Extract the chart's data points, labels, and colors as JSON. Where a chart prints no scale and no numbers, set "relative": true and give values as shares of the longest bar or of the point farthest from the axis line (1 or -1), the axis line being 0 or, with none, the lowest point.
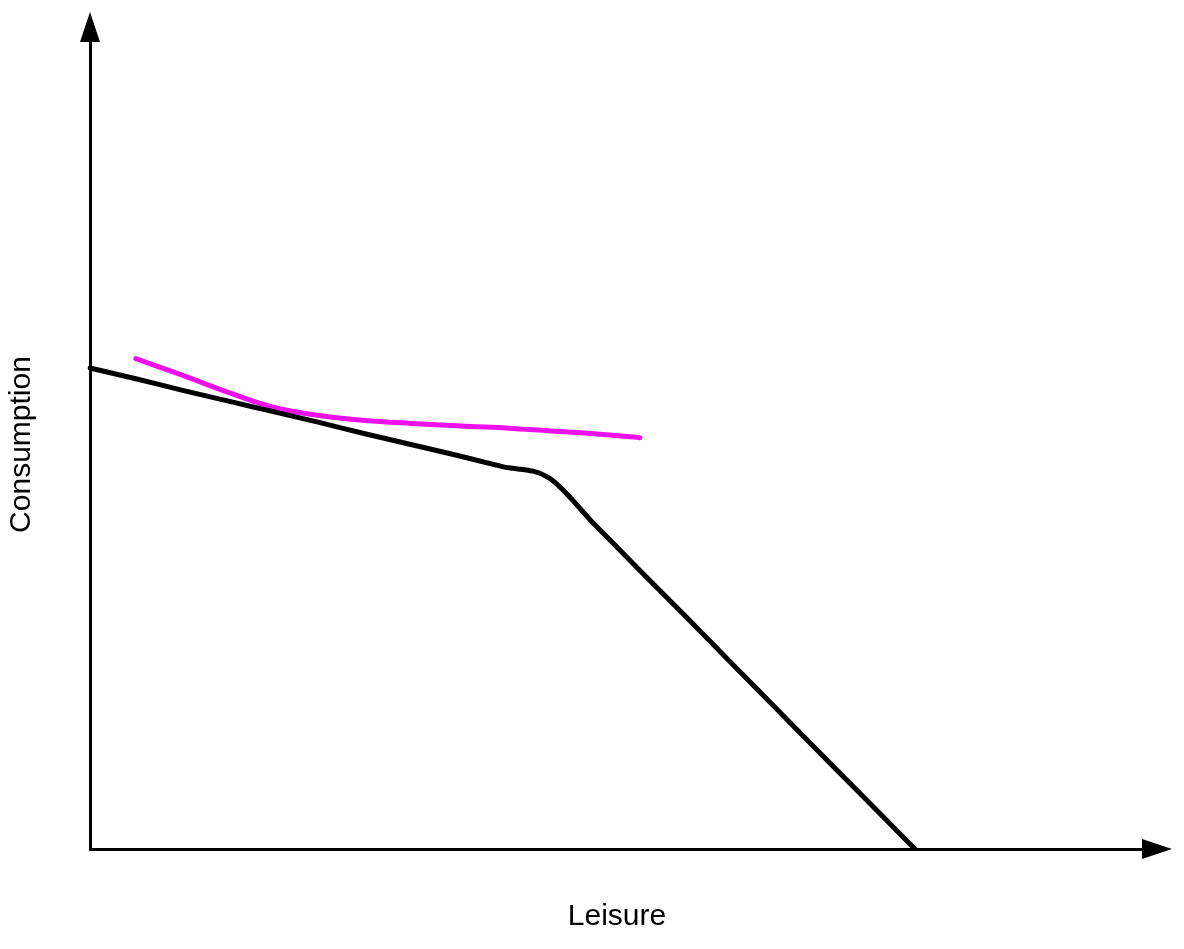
{
  "chart_data": {
    "type": "line",
    "relative": true,
    "xlabel": "Leisure",
    "ylabel": "Consumption",
    "grid": false,
    "legend": false,
    "marker": "none",
    "line_style": "solid",
    "categories": [
      null,
      null,
      null,
      null,
      null,
      null,
      null,
      null,
      null,
      null,
      null,
      null,
      null,
      null,
      null,
      null,
      null,
      null,
      null,
      null,
      null,
      null,
      null,
      null
    ],
    "series": [
      {
        "color": "#000000",
        "values": [
          0.981,
          0.959,
          0.936,
          0.914,
          0.892,
          0.87,
          0.847,
          0.825,
          0.803,
          0.78,
          0.758,
          0.663,
          0.568,
          0.474,
          0.379,
          0.284,
          0.189,
          0.095,
          0,
          null,
          null,
          null,
          null,
          null
        ]
      },
      {
        "color": "#ee11ee",
        "values": [
          null,
          1,
          0.967,
          0.932,
          0.901,
          0.884,
          0.874,
          0.868,
          0.863,
          0.859,
          0.853,
          0.847,
          0.839,
          null,
          null,
          null,
          null,
          null,
          null,
          null,
          null,
          null,
          null,
          null
        ]
      }
    ]
  }
}
